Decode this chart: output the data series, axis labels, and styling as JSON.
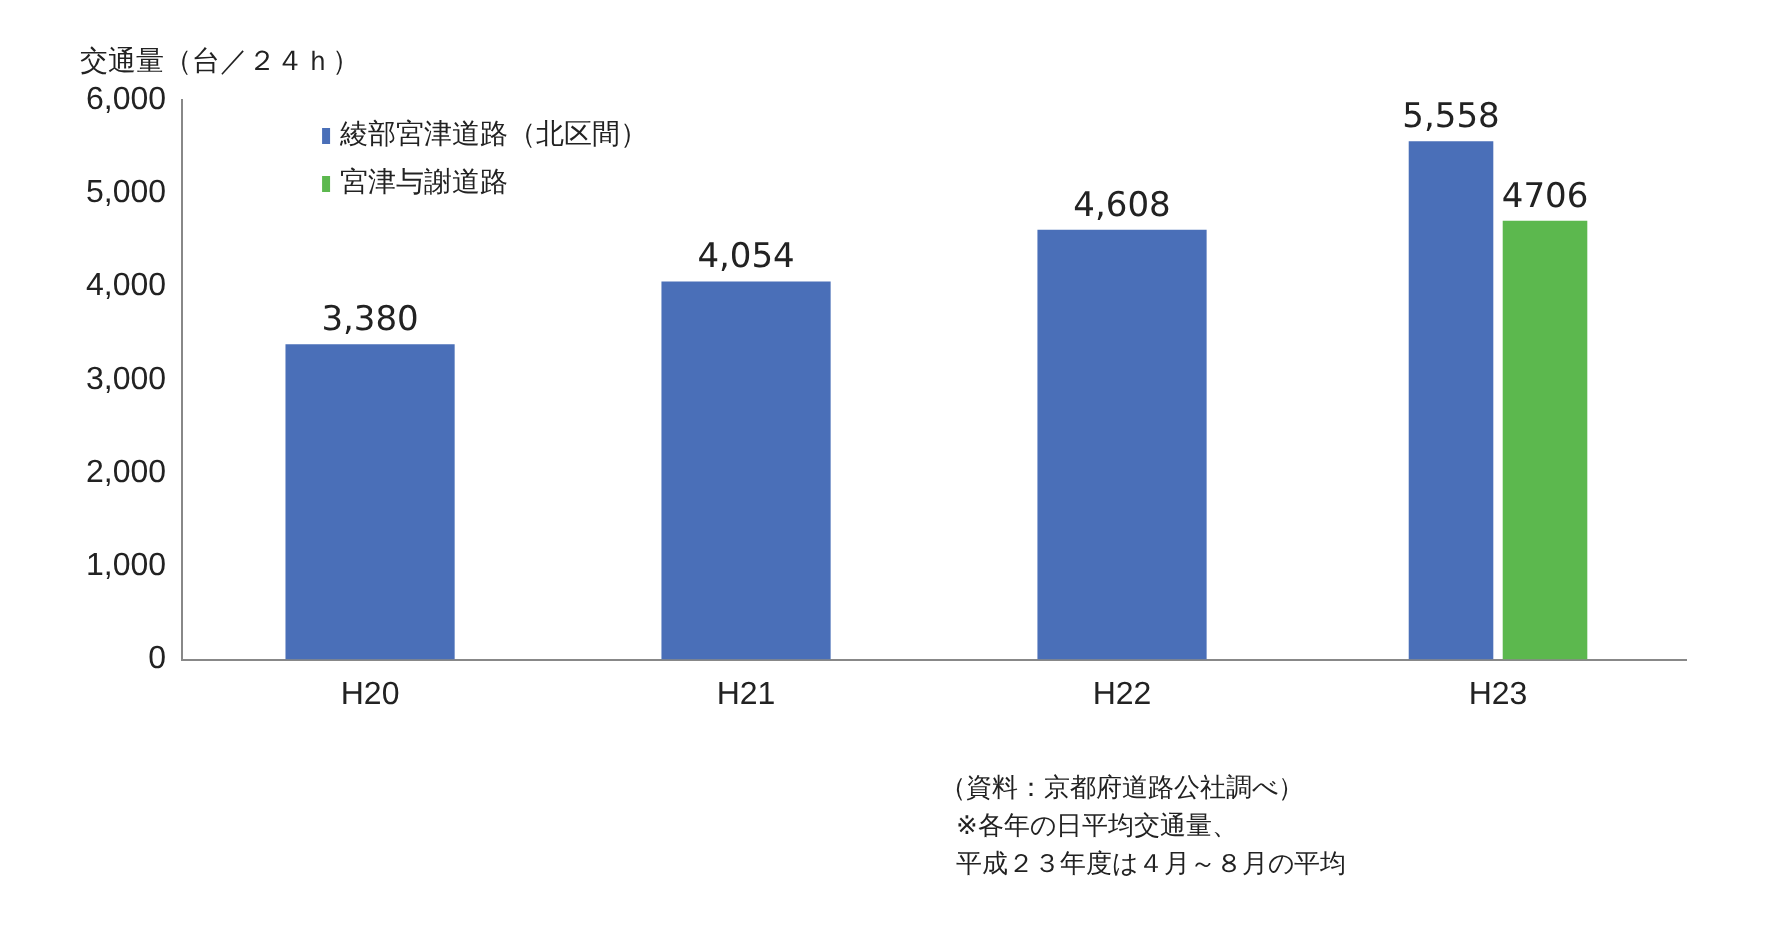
{
  "chart_data": {
    "type": "bar",
    "ylabel": "交通量（台／２４ｈ）",
    "categories": [
      "H20",
      "H21",
      "H22",
      "H23"
    ],
    "series": [
      {
        "name": "綾部宮津道路（北区間）",
        "color": "#4a6fb8",
        "values": [
          3380,
          4054,
          4608,
          5558
        ],
        "value_labels": [
          "3,380",
          "4,054",
          "4,608",
          "5,558"
        ]
      },
      {
        "name": "宮津与謝道路",
        "color": "#5cb84e",
        "values": [
          null,
          null,
          null,
          4706
        ],
        "value_labels": [
          null,
          null,
          null,
          "4706"
        ]
      }
    ],
    "ylim": [
      0,
      6000
    ],
    "yticks": [
      {
        "value": 0,
        "label": "0"
      },
      {
        "value": 1000,
        "label": "1,000"
      },
      {
        "value": 2000,
        "label": "2,000"
      },
      {
        "value": 3000,
        "label": "3,000"
      },
      {
        "value": 4000,
        "label": "4,000"
      },
      {
        "value": 5000,
        "label": "5,000"
      },
      {
        "value": 6000,
        "label": "6,000"
      }
    ],
    "grid": false,
    "legend": "top left",
    "annotations": [
      "（資料：京都府道路公社調べ）",
      "※各年の日平均交通量、",
      "平成２３年度は４月～８月の平均"
    ]
  }
}
